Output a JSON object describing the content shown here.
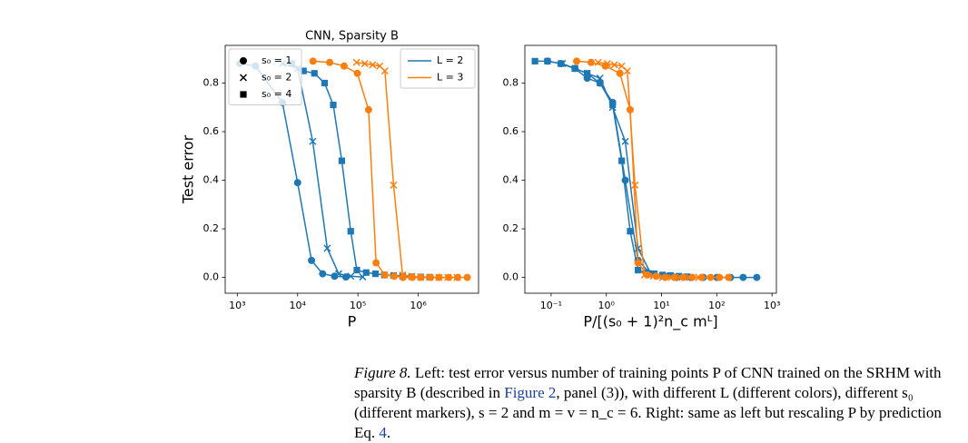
{
  "chart_data": [
    {
      "type": "line",
      "title": "CNN, Sparsity B",
      "ylabel": "Test error",
      "xlabel": "P",
      "log_x": true,
      "xlim": [
        630,
        10000000
      ],
      "ylim": [
        -0.065,
        0.955
      ],
      "xticks": [
        {
          "value": 1000,
          "label": "10³"
        },
        {
          "value": 10000,
          "label": "10⁴"
        },
        {
          "value": 100000,
          "label": "10⁵"
        },
        {
          "value": 1000000,
          "label": "10⁶"
        }
      ],
      "yticks": [
        {
          "value": 0,
          "label": "0.0"
        },
        0.2,
        0.4,
        0.6,
        0.8
      ],
      "marker_legend": {
        "corner": "upper left",
        "entries": [
          {
            "label": "s₀ = 1",
            "marker": "circle"
          },
          {
            "label": "s₀ = 2",
            "marker": "x"
          },
          {
            "label": "s₀ = 4",
            "marker": "square"
          }
        ]
      },
      "color_legend": {
        "corner": "upper right",
        "entries": [
          {
            "label": "L = 2",
            "color": "#1f77b4"
          },
          {
            "label": "L = 3",
            "color": "#ff7f0e"
          }
        ]
      },
      "series": [
        {
          "color": "#1f77b4",
          "marker": "circle",
          "x": [
            1100,
            2000,
            5600,
            10000,
            17000,
            26000,
            41000,
            63000
          ],
          "values": [
            0.88,
            0.87,
            0.72,
            0.39,
            0.07,
            0.015,
            0.005,
            0.002
          ]
        },
        {
          "color": "#1f77b4",
          "marker": "x",
          "x": [
            5600,
            10000,
            17800,
            31000,
            48000,
            76000,
            120000
          ],
          "values": [
            0.88,
            0.86,
            0.56,
            0.12,
            0.015,
            0.005,
            0.002
          ]
        },
        {
          "color": "#1f77b4",
          "marker": "square",
          "x": [
            8000,
            12500,
            19000,
            28000,
            39000,
            54000,
            76000,
            96000,
            137000,
            195000,
            275000,
            390000,
            550000,
            780000,
            1100000,
            1550000
          ],
          "values": [
            0.88,
            0.85,
            0.84,
            0.8,
            0.71,
            0.48,
            0.19,
            0.03,
            0.02,
            0.015,
            0.01,
            0.008,
            0.005,
            0.003,
            0.002,
            0.001
          ]
        },
        {
          "color": "#ff7f0e",
          "marker": "circle",
          "x": [
            18000,
            34000,
            59000,
            98000,
            150000,
            200000,
            280000,
            400000,
            560000,
            800000,
            1100000,
            1600000,
            2200000,
            3200000,
            4500000,
            6500000
          ],
          "values": [
            0.89,
            0.885,
            0.87,
            0.84,
            0.69,
            0.06,
            0.01,
            0.005,
            0,
            0,
            0,
            0,
            0,
            0,
            0,
            0
          ]
        },
        {
          "color": "#ff7f0e",
          "marker": "x",
          "x": [
            95000,
            130000,
            175000,
            230000,
            280000,
            390000,
            550000,
            780000,
            1100000,
            1550000,
            2200000,
            3100000,
            4400000
          ],
          "values": [
            0.885,
            0.88,
            0.875,
            0.87,
            0.85,
            0.38,
            0.01,
            0.005,
            0,
            0,
            0,
            0,
            0
          ]
        }
      ]
    },
    {
      "type": "line",
      "xlabel": "P/[(s₀ + 1)²n_c mᴸ]",
      "log_x": true,
      "xlim": [
        0.0335,
        1200
      ],
      "ylim": [
        -0.065,
        0.955
      ],
      "xticks": [
        {
          "value": 0.1,
          "label": "10⁻¹"
        },
        {
          "value": 1,
          "label": "10⁰"
        },
        {
          "value": 10,
          "label": "10¹"
        },
        {
          "value": 100,
          "label": "10²"
        },
        {
          "value": 1000,
          "label": "10³"
        }
      ],
      "yticks": [
        {
          "value": 0,
          "label": "0.0"
        },
        0.2,
        0.4,
        0.6,
        0.8
      ],
      "series": [
        {
          "color": "#1f77b4",
          "marker": "circle",
          "x": [
            0.086,
            0.15,
            0.27,
            0.45,
            0.77,
            1.3,
            2.2,
            3.75,
            6.4,
            11.2,
            19,
            33.5,
            57,
            100,
            177,
            300,
            530
          ],
          "values": [
            0.89,
            0.88,
            0.86,
            0.82,
            0.8,
            0.72,
            0.4,
            0.07,
            0.015,
            0.005,
            0,
            0,
            0,
            0,
            0,
            0,
            0
          ]
        },
        {
          "color": "#1f77b4",
          "marker": "x",
          "x": [
            0.16,
            0.27,
            0.45,
            0.77,
            1.3,
            2.2,
            3.75,
            6.4,
            11.2,
            19,
            32
          ],
          "values": [
            0.88,
            0.86,
            0.84,
            0.82,
            0.7,
            0.56,
            0.12,
            0.015,
            0.005,
            0.002,
            0
          ]
        },
        {
          "color": "#1f77b4",
          "marker": "square",
          "x": [
            0.051,
            0.086,
            0.15,
            0.27,
            0.45,
            0.77,
            1.3,
            1.9,
            2.7,
            3.75,
            5.3,
            7.4,
            10.4,
            14.6,
            20.6,
            28.7
          ],
          "values": [
            0.89,
            0.89,
            0.88,
            0.86,
            0.84,
            0.8,
            0.71,
            0.48,
            0.19,
            0.03,
            0.02,
            0.015,
            0.01,
            0.008,
            0.005,
            0.003
          ]
        },
        {
          "color": "#ff7f0e",
          "marker": "circle",
          "x": [
            0.29,
            0.53,
            0.96,
            1.76,
            2.7,
            3.75,
            5.5,
            8.0,
            11.6,
            17,
            24.6,
            36,
            53,
            77,
            112,
            163
          ],
          "values": [
            0.89,
            0.885,
            0.87,
            0.84,
            0.69,
            0.06,
            0.01,
            0.005,
            0,
            0,
            0,
            0,
            0,
            0,
            0,
            0
          ]
        },
        {
          "color": "#ff7f0e",
          "marker": "x",
          "x": [
            0.71,
            1.04,
            1.4,
            1.9,
            2.4,
            3.3,
            4.9,
            7.1,
            10.4,
            15.1,
            22,
            32,
            47
          ],
          "values": [
            0.885,
            0.88,
            0.875,
            0.87,
            0.85,
            0.38,
            0.01,
            0.005,
            0,
            0,
            0,
            0,
            0
          ]
        }
      ]
    }
  ],
  "caption": {
    "parts": [
      "Figure 8.",
      " Left: test error versus number of training points P of CNN trained on the SRHM with sparsity B (described in ",
      "Figure 2",
      ", panel (3)), with different L (different colors), different s₀ (different markers), s = 2 and m = v = n_c = 6. Right: same as left but rescaling P by prediction Eq. ",
      "4",
      "."
    ]
  }
}
